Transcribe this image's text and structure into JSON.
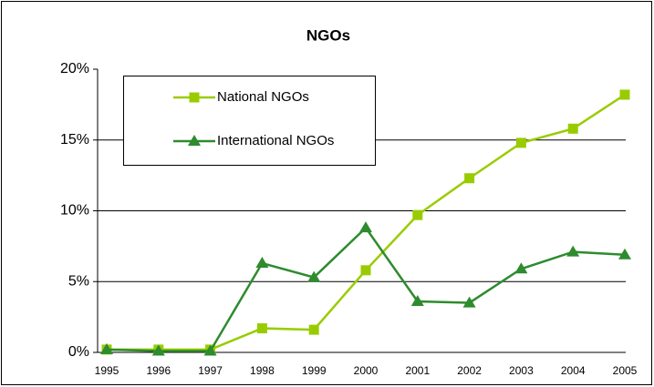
{
  "chart_data": {
    "type": "line",
    "title": "NGOs",
    "categories": [
      "1995",
      "1996",
      "1997",
      "1998",
      "1999",
      "2000",
      "2001",
      "2002",
      "2003",
      "2004",
      "2005"
    ],
    "series": [
      {
        "name": "National NGOs",
        "color": "#99cc00",
        "marker": "square",
        "values": [
          0.2,
          0.2,
          0.2,
          1.7,
          1.6,
          5.8,
          9.7,
          12.3,
          14.8,
          15.8,
          18.2
        ]
      },
      {
        "name": "International NGOs",
        "color": "#2e8b2e",
        "marker": "triangle",
        "values": [
          0.2,
          0.1,
          0.1,
          6.3,
          5.3,
          8.8,
          3.6,
          3.5,
          5.9,
          7.1,
          6.9
        ]
      }
    ],
    "ylim": [
      0,
      20
    ],
    "yticks": [
      {
        "value": 0,
        "label": "0%"
      },
      {
        "value": 5,
        "label": "5%"
      },
      {
        "value": 10,
        "label": "10%"
      },
      {
        "value": 15,
        "label": "15%"
      },
      {
        "value": 20,
        "label": "20%"
      }
    ],
    "grid": true,
    "legend": "upper left"
  }
}
